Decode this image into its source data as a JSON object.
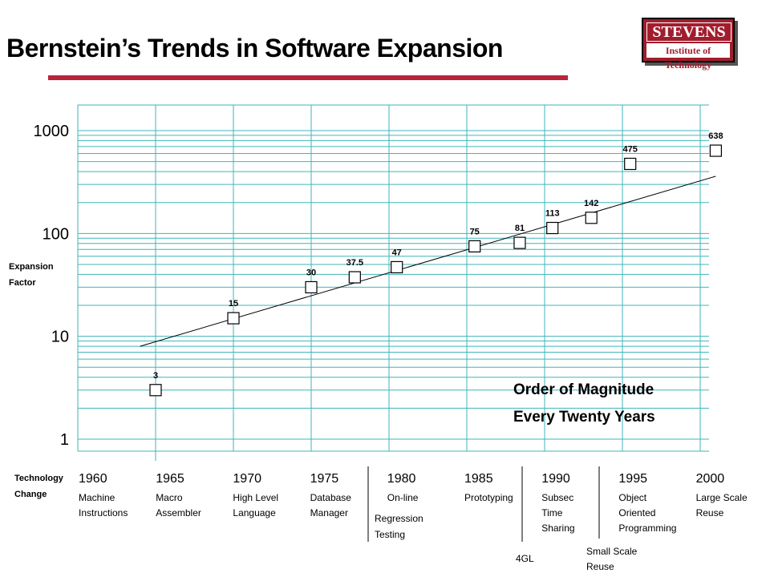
{
  "slide": {
    "title": "Bernstein’s Trends in Software Expansion",
    "logo_top": "STEVENS",
    "logo_bottom": "Institute of Technology"
  },
  "colors": {
    "accent": "#b8243a",
    "grid": "#3fb6b8",
    "logo": "#a11d2e"
  },
  "chart_data": {
    "type": "scatter",
    "yscale": "log",
    "ylim": [
      1,
      1500
    ],
    "xlim": [
      1955,
      2000
    ],
    "ylabel": "Expansion Factor",
    "xlabel": "Technology Change",
    "ytick_labels": [
      "1000",
      "100",
      "10",
      "1"
    ],
    "yticks": [
      1000,
      100,
      10,
      1
    ],
    "grid": true,
    "points": [
      {
        "x": 1960,
        "y": 3,
        "label": "3"
      },
      {
        "x": 1965,
        "y": 15,
        "label": "15"
      },
      {
        "x": 1970,
        "y": 30,
        "label": "30"
      },
      {
        "x": 1972.8,
        "y": 37.5,
        "label": "37.5"
      },
      {
        "x": 1975.5,
        "y": 47,
        "label": "47"
      },
      {
        "x": 1980.5,
        "y": 75,
        "label": "75"
      },
      {
        "x": 1983.4,
        "y": 81,
        "label": "81"
      },
      {
        "x": 1985.5,
        "y": 113,
        "label": "113"
      },
      {
        "x": 1988,
        "y": 142,
        "label": "142"
      },
      {
        "x": 1990.5,
        "y": 475,
        "label": "475"
      },
      {
        "x": 1996,
        "y": 638,
        "label": "638"
      }
    ],
    "trendline": [
      {
        "x": 1959,
        "y": 8
      },
      {
        "x": 1996,
        "y": 360
      }
    ],
    "annotation": [
      "Order of Magnitude",
      "Every Twenty Years"
    ],
    "x_categories": [
      {
        "year": "1960",
        "line1": "Machine",
        "line2": "Instructions"
      },
      {
        "year": "1965",
        "line1": "Macro",
        "line2": "Assembler"
      },
      {
        "year": "1970",
        "line1": "High Level",
        "line2": "Language"
      },
      {
        "year": "1975",
        "line1": "Database",
        "line2": "Manager"
      },
      {
        "year": "1980",
        "line1": "On-line",
        "line2": ""
      },
      {
        "year": "1985",
        "line1": "Prototyping",
        "line2": ""
      },
      {
        "year": "1990",
        "line1": "Subsec",
        "line2": "Time",
        "line3": "Sharing"
      },
      {
        "year": "1995",
        "line1": "Object",
        "line2": "Oriented",
        "line3": "Programming"
      },
      {
        "year": "2000",
        "line1": "Large Scale",
        "line2": "Reuse"
      }
    ],
    "extra_labels": [
      {
        "text1": "Regression",
        "text2": "Testing"
      },
      {
        "text1": "4GL",
        "text2": ""
      },
      {
        "text1": "Small Scale",
        "text2": "Reuse"
      }
    ]
  }
}
